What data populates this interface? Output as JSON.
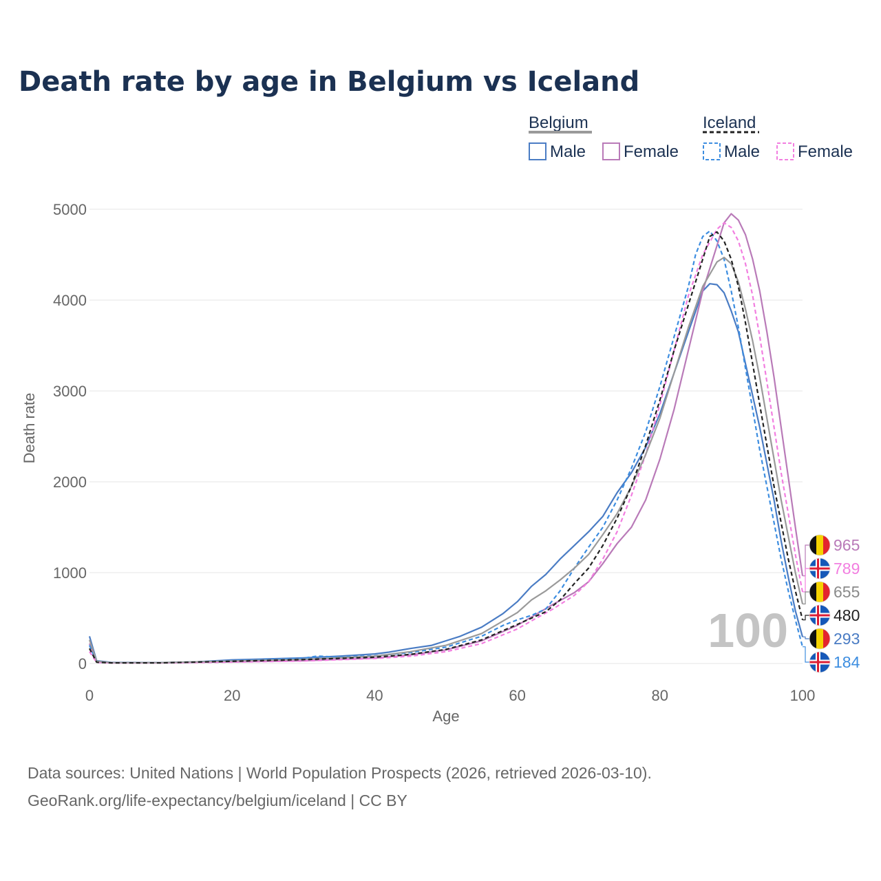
{
  "chart_data": {
    "type": "line",
    "title": "Death rate by age in Belgium vs Iceland",
    "xlabel": "Age",
    "ylabel": "Death rate",
    "xlim": [
      0,
      100
    ],
    "ylim": [
      0,
      5000
    ],
    "x_ticks": [
      "0",
      "20",
      "40",
      "60",
      "80",
      "100"
    ],
    "y_ticks": [
      "0",
      "1000",
      "2000",
      "3000",
      "4000",
      "5000"
    ],
    "grid": true,
    "year_watermark": "100",
    "legend": {
      "groups": [
        {
          "country": "Belgium",
          "items": [
            "Male",
            "Female"
          ]
        },
        {
          "country": "Iceland",
          "items": [
            "Male",
            "Female"
          ]
        }
      ]
    },
    "series": [
      {
        "name": "Belgium Male",
        "country": "Belgium",
        "sex": "Male",
        "color": "#4a7cc4",
        "dashed": false,
        "end_label": "293",
        "points": [
          [
            0,
            300
          ],
          [
            1,
            30
          ],
          [
            3,
            12
          ],
          [
            10,
            10
          ],
          [
            15,
            18
          ],
          [
            20,
            40
          ],
          [
            25,
            50
          ],
          [
            30,
            62
          ],
          [
            35,
            80
          ],
          [
            40,
            105
          ],
          [
            42,
            125
          ],
          [
            45,
            165
          ],
          [
            48,
            200
          ],
          [
            50,
            250
          ],
          [
            52,
            300
          ],
          [
            55,
            400
          ],
          [
            58,
            550
          ],
          [
            60,
            680
          ],
          [
            62,
            850
          ],
          [
            64,
            980
          ],
          [
            66,
            1150
          ],
          [
            68,
            1300
          ],
          [
            70,
            1450
          ],
          [
            72,
            1620
          ],
          [
            74,
            1880
          ],
          [
            76,
            2100
          ],
          [
            78,
            2380
          ],
          [
            80,
            2750
          ],
          [
            82,
            3200
          ],
          [
            84,
            3650
          ],
          [
            86,
            4100
          ],
          [
            87,
            4180
          ],
          [
            88,
            4170
          ],
          [
            89,
            4080
          ],
          [
            90,
            3880
          ],
          [
            91,
            3650
          ],
          [
            92,
            3300
          ],
          [
            93,
            2950
          ],
          [
            94,
            2600
          ],
          [
            95,
            2200
          ],
          [
            96,
            1800
          ],
          [
            97,
            1350
          ],
          [
            98,
            950
          ],
          [
            99,
            580
          ],
          [
            100,
            293
          ]
        ]
      },
      {
        "name": "Belgium Female",
        "country": "Belgium",
        "sex": "Female",
        "color": "#b97ab8",
        "dashed": false,
        "end_label": "965",
        "points": [
          [
            0,
            220
          ],
          [
            1,
            20
          ],
          [
            3,
            8
          ],
          [
            10,
            8
          ],
          [
            20,
            18
          ],
          [
            30,
            30
          ],
          [
            40,
            60
          ],
          [
            45,
            95
          ],
          [
            50,
            150
          ],
          [
            55,
            250
          ],
          [
            60,
            420
          ],
          [
            65,
            650
          ],
          [
            68,
            780
          ],
          [
            70,
            900
          ],
          [
            72,
            1100
          ],
          [
            74,
            1320
          ],
          [
            76,
            1500
          ],
          [
            78,
            1800
          ],
          [
            80,
            2250
          ],
          [
            82,
            2800
          ],
          [
            84,
            3450
          ],
          [
            86,
            4100
          ],
          [
            88,
            4600
          ],
          [
            89,
            4850
          ],
          [
            90,
            4950
          ],
          [
            91,
            4880
          ],
          [
            92,
            4720
          ],
          [
            93,
            4450
          ],
          [
            94,
            4100
          ],
          [
            95,
            3650
          ],
          [
            96,
            3150
          ],
          [
            97,
            2600
          ],
          [
            98,
            2050
          ],
          [
            99,
            1500
          ],
          [
            100,
            965
          ]
        ]
      },
      {
        "name": "Iceland Male",
        "country": "Iceland",
        "sex": "Male",
        "color": "#3c8de0",
        "dashed": true,
        "end_label": "184",
        "points": [
          [
            0,
            200
          ],
          [
            1,
            15
          ],
          [
            3,
            8
          ],
          [
            10,
            8
          ],
          [
            15,
            15
          ],
          [
            20,
            32
          ],
          [
            25,
            45
          ],
          [
            30,
            58
          ],
          [
            32,
            82
          ],
          [
            35,
            70
          ],
          [
            40,
            85
          ],
          [
            45,
            120
          ],
          [
            50,
            180
          ],
          [
            55,
            300
          ],
          [
            58,
            420
          ],
          [
            60,
            480
          ],
          [
            62,
            530
          ],
          [
            64,
            600
          ],
          [
            66,
            800
          ],
          [
            68,
            1050
          ],
          [
            70,
            1280
          ],
          [
            72,
            1500
          ],
          [
            74,
            1800
          ],
          [
            76,
            2150
          ],
          [
            78,
            2550
          ],
          [
            80,
            3050
          ],
          [
            82,
            3600
          ],
          [
            84,
            4150
          ],
          [
            85,
            4500
          ],
          [
            86,
            4700
          ],
          [
            87,
            4760
          ],
          [
            88,
            4650
          ],
          [
            89,
            4450
          ],
          [
            90,
            4100
          ],
          [
            91,
            3700
          ],
          [
            92,
            3250
          ],
          [
            93,
            2800
          ],
          [
            94,
            2350
          ],
          [
            95,
            1950
          ],
          [
            96,
            1550
          ],
          [
            97,
            1150
          ],
          [
            98,
            800
          ],
          [
            99,
            480
          ],
          [
            100,
            184
          ]
        ]
      },
      {
        "name": "Iceland Female",
        "country": "Iceland",
        "sex": "Female",
        "color": "#f27ee0",
        "dashed": true,
        "end_label": "789",
        "points": [
          [
            0,
            130
          ],
          [
            1,
            12
          ],
          [
            3,
            6
          ],
          [
            10,
            6
          ],
          [
            20,
            15
          ],
          [
            30,
            28
          ],
          [
            40,
            55
          ],
          [
            45,
            80
          ],
          [
            50,
            130
          ],
          [
            55,
            220
          ],
          [
            60,
            380
          ],
          [
            62,
            470
          ],
          [
            65,
            600
          ],
          [
            68,
            750
          ],
          [
            70,
            900
          ],
          [
            72,
            1150
          ],
          [
            74,
            1450
          ],
          [
            76,
            1850
          ],
          [
            78,
            2300
          ],
          [
            80,
            2850
          ],
          [
            82,
            3450
          ],
          [
            84,
            4050
          ],
          [
            86,
            4500
          ],
          [
            88,
            4780
          ],
          [
            89,
            4850
          ],
          [
            90,
            4800
          ],
          [
            91,
            4650
          ],
          [
            92,
            4400
          ],
          [
            93,
            4050
          ],
          [
            94,
            3600
          ],
          [
            95,
            3100
          ],
          [
            96,
            2600
          ],
          [
            97,
            2100
          ],
          [
            98,
            1650
          ],
          [
            99,
            1200
          ],
          [
            100,
            789
          ]
        ]
      },
      {
        "name": "Belgium total",
        "country": "Belgium",
        "sex": "Total",
        "color": "#9a9a9a",
        "dashed": false,
        "end_label": "655",
        "points": [
          [
            0,
            260
          ],
          [
            1,
            25
          ],
          [
            3,
            10
          ],
          [
            10,
            9
          ],
          [
            20,
            28
          ],
          [
            30,
            45
          ],
          [
            40,
            80
          ],
          [
            45,
            130
          ],
          [
            50,
            200
          ],
          [
            55,
            330
          ],
          [
            60,
            560
          ],
          [
            62,
            700
          ],
          [
            64,
            800
          ],
          [
            66,
            920
          ],
          [
            68,
            1050
          ],
          [
            70,
            1200
          ],
          [
            72,
            1420
          ],
          [
            74,
            1650
          ],
          [
            76,
            1950
          ],
          [
            78,
            2300
          ],
          [
            80,
            2700
          ],
          [
            82,
            3200
          ],
          [
            84,
            3700
          ],
          [
            86,
            4150
          ],
          [
            88,
            4420
          ],
          [
            89,
            4470
          ],
          [
            90,
            4400
          ],
          [
            91,
            4200
          ],
          [
            92,
            3900
          ],
          [
            93,
            3550
          ],
          [
            94,
            3150
          ],
          [
            95,
            2700
          ],
          [
            96,
            2250
          ],
          [
            97,
            1800
          ],
          [
            98,
            1400
          ],
          [
            99,
            1000
          ],
          [
            100,
            655
          ]
        ]
      },
      {
        "name": "Iceland total",
        "country": "Iceland",
        "sex": "Total",
        "color": "#222222",
        "dashed": true,
        "end_label": "480",
        "points": [
          [
            0,
            165
          ],
          [
            1,
            14
          ],
          [
            3,
            7
          ],
          [
            10,
            7
          ],
          [
            20,
            24
          ],
          [
            30,
            43
          ],
          [
            40,
            70
          ],
          [
            45,
            100
          ],
          [
            50,
            155
          ],
          [
            55,
            260
          ],
          [
            60,
            430
          ],
          [
            62,
            500
          ],
          [
            64,
            570
          ],
          [
            66,
            700
          ],
          [
            68,
            880
          ],
          [
            70,
            1050
          ],
          [
            72,
            1300
          ],
          [
            74,
            1600
          ],
          [
            76,
            1950
          ],
          [
            78,
            2400
          ],
          [
            80,
            2900
          ],
          [
            82,
            3450
          ],
          [
            84,
            3950
          ],
          [
            86,
            4450
          ],
          [
            87,
            4700
          ],
          [
            88,
            4750
          ],
          [
            89,
            4650
          ],
          [
            90,
            4450
          ],
          [
            91,
            4150
          ],
          [
            92,
            3750
          ],
          [
            93,
            3300
          ],
          [
            94,
            2850
          ],
          [
            95,
            2400
          ],
          [
            96,
            1950
          ],
          [
            97,
            1550
          ],
          [
            98,
            1150
          ],
          [
            99,
            800
          ],
          [
            100,
            480
          ]
        ]
      }
    ],
    "end_labels": [
      {
        "value": "965",
        "color": "#b97ab8",
        "flag": "belgium"
      },
      {
        "value": "789",
        "color": "#f27ee0",
        "flag": "iceland"
      },
      {
        "value": "655",
        "color": "#8a8a8a",
        "flag": "belgium"
      },
      {
        "value": "480",
        "color": "#222222",
        "flag": "iceland"
      },
      {
        "value": "293",
        "color": "#4a7cc4",
        "flag": "belgium"
      },
      {
        "value": "184",
        "color": "#3c8de0",
        "flag": "iceland"
      }
    ]
  },
  "footer": {
    "source_line1": "Data sources: United Nations | World Population Prospects (2026, retrieved 2026-03-10).",
    "source_line2": "GeoRank.org/life-expectancy/belgium/iceland | CC BY"
  }
}
